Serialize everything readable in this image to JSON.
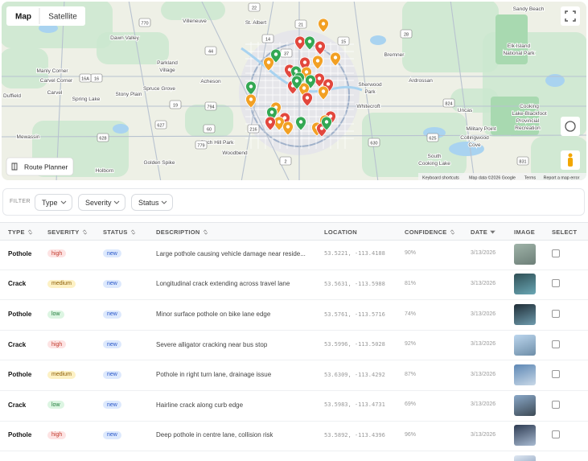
{
  "map": {
    "tabs": [
      "Map",
      "Satellite"
    ],
    "route_planner": "Route Planner",
    "places": [
      "St. Albert",
      "Villeneuve",
      "Sandy Beach",
      "Dawn Valley",
      "Elk Island",
      "National Park",
      "Bremner",
      "Manly Corner",
      "Carvel Corner",
      "Parkland",
      "Village",
      "Spruce Grove",
      "Acheson",
      "Stony Plain",
      "Carvel",
      "Spring Lake",
      "Duffield",
      "Sherwood",
      "Park",
      "Ardrossan",
      "Whitecroft",
      "Uncas",
      "Cooking",
      "Lake-Blackfoot",
      "Provincial",
      "Recreation",
      "Military Point",
      "Collingwood",
      "Cove",
      "Mewassin",
      "Birch Hill Park",
      "Woodbend",
      "Golden Spike",
      "Holborn",
      "South",
      "Cooking Lake"
    ],
    "roads": [
      "16",
      "16A",
      "44",
      "216",
      "15",
      "14",
      "21",
      "60",
      "2",
      "19",
      "628",
      "627",
      "625",
      "630",
      "770",
      "779",
      "37",
      "28",
      "831",
      "824",
      "794",
      "22"
    ],
    "footer": [
      "Keyboard shortcuts",
      "Map data ©2026 Google",
      "Terms",
      "Report a map error"
    ]
  },
  "filter": {
    "label": "FILTER",
    "buttons": [
      "Type",
      "Severity",
      "Status"
    ]
  },
  "table": {
    "columns": [
      "TYPE",
      "SEVERITY",
      "STATUS",
      "DESCRIPTION",
      "LOCATION",
      "CONFIDENCE",
      "DATE",
      "IMAGE",
      "SELECT"
    ],
    "rows": [
      [
        "Pothole",
        "high",
        "new",
        "Large pothole causing vehicle damage near reside...",
        "53.5221, -113.4188",
        "90%",
        "3/13/2026"
      ],
      [
        "Crack",
        "medium",
        "new",
        "Longitudinal crack extending across travel lane",
        "53.5631, -113.5988",
        "81%",
        "3/13/2026"
      ],
      [
        "Pothole",
        "low",
        "new",
        "Minor surface pothole on bike lane edge",
        "53.5761, -113.5716",
        "74%",
        "3/13/2026"
      ],
      [
        "Crack",
        "high",
        "new",
        "Severe alligator cracking near bus stop",
        "53.5996, -113.5028",
        "92%",
        "3/13/2026"
      ],
      [
        "Pothole",
        "medium",
        "new",
        "Pothole in right turn lane, drainage issue",
        "53.6309, -113.4292",
        "87%",
        "3/13/2026"
      ],
      [
        "Crack",
        "low",
        "new",
        "Hairline crack along curb edge",
        "53.5983, -113.4731",
        "69%",
        "3/13/2026"
      ],
      [
        "Pothole",
        "high",
        "new",
        "Deep pothole in centre lane, collision risk",
        "53.5892, -113.4396",
        "96%",
        "3/13/2026"
      ]
    ]
  }
}
